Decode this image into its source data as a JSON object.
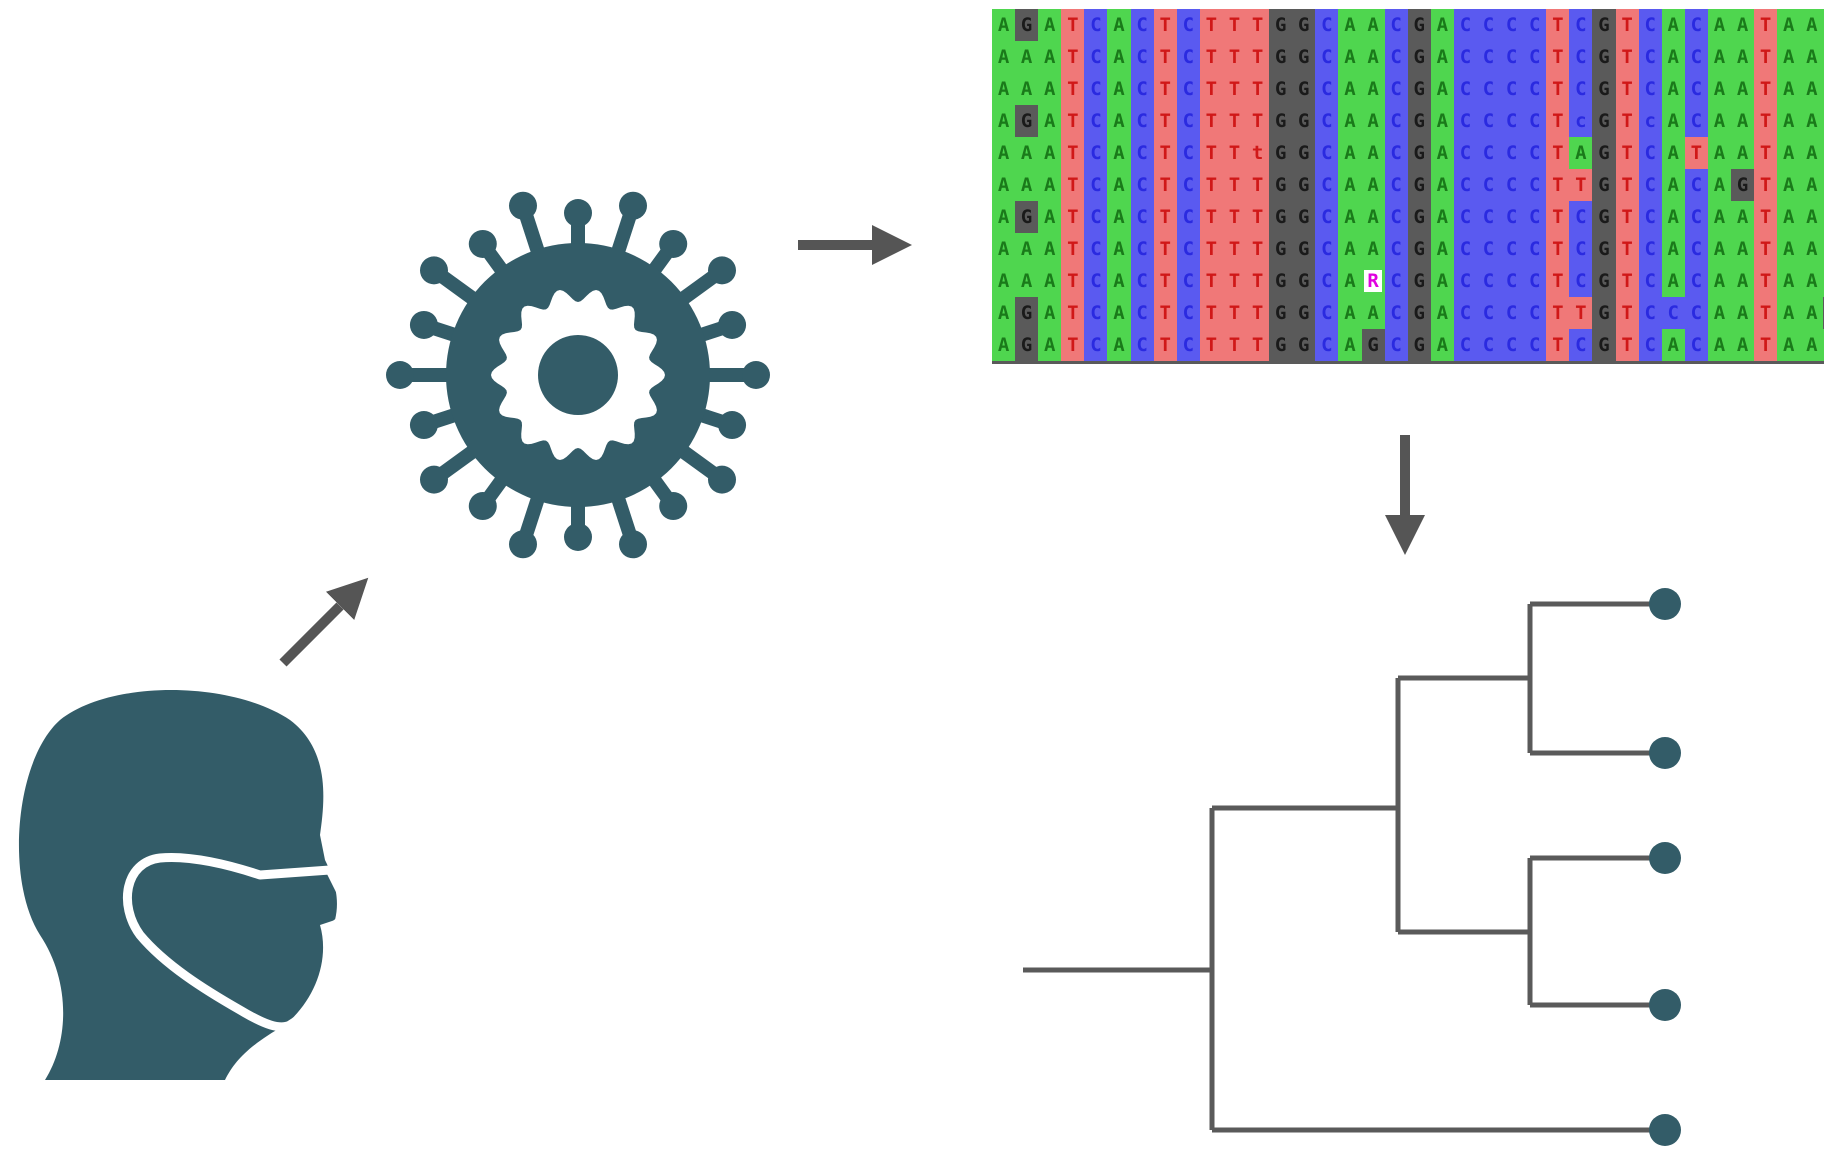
{
  "colors": {
    "icon": "#335c68",
    "arrow": "#555555",
    "tree_line": "#5a5a5a",
    "nucleotide_bg": {
      "A": "#4fd64f",
      "C": "#5a5af0",
      "G": "#5a5a5a",
      "T": "#f07878",
      "R": "#ffffff"
    },
    "nucleotide_fg": {
      "A": "#1a7a1a",
      "C": "#2a2ae0",
      "G": "#1a1a1a",
      "T": "#d01818",
      "R": "#e000e0"
    }
  },
  "icons": {
    "person": "masked-person-icon",
    "virus": "virus-icon",
    "tree": "phylogenetic-tree"
  },
  "alignment": {
    "sequences": [
      "AGATCACTCTTTGGCAACGACCCCTCGTCACAATAAA",
      "AAATCACTCTTTGGCAACGACCCCTCGTCACAATAAA",
      "AAATCACTCTTTGGCAACGACCCCTCGTCACAATAAA",
      "AGATCACTCTTTGGCAACGACCCCTcGTcACAATAAA",
      "AAATCACTCTTtGGCAACGACCCCTAGTCATAATAAA",
      "AAATCACTCTTTGGCAACGACCCCTTGTCACAGTAAA",
      "AGATCACTCTTTGGCAACGACCCCTCGTCACAATAAA",
      "AAATCACTCTTTGGCAACGACCCCTCGTCACAATAAA",
      "AAATCACTCTTTGGCARCGACCCCTCGTCACAATAAA",
      "AGATCACTCTTTGGCAACGACCCCTTGTCCCAATAAG",
      "AGATCACTCTTTGGCAGCGACCCCTCGTCACAATAAA"
    ]
  },
  "tree": {
    "leaves": 5
  }
}
